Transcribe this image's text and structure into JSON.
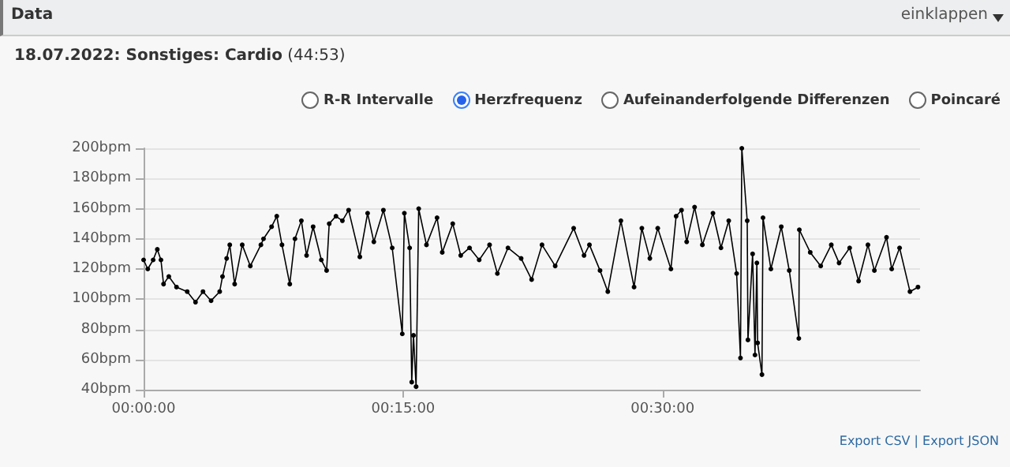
{
  "chart_data": {
    "type": "line",
    "title": "18.07.2022: Sonstiges: Cardio (44:53)",
    "annotations": [
      "Data",
      "einklappen",
      "R-R Intervalle",
      "Herzfrequenz",
      "Aufeinanderfolgende Differenzen",
      "Poincaré",
      "Export CSV | Export JSON"
    ],
    "xlim": [
      0,
      0.748
    ],
    "xticks": [
      {
        "value": 0,
        "label": "00:00:00"
      },
      {
        "value": 0.25,
        "label": "00:15:00"
      },
      {
        "value": 0.5,
        "label": "00:30:00"
      }
    ],
    "ylim": [
      40,
      200
    ],
    "yticks": [
      {
        "value": 40,
        "label": "40bpm"
      },
      {
        "value": 60,
        "label": "60bpm"
      },
      {
        "value": 80,
        "label": "80bpm"
      },
      {
        "value": 100,
        "label": "100bpm"
      },
      {
        "value": 120,
        "label": "120bpm"
      },
      {
        "value": 140,
        "label": "140bpm"
      },
      {
        "value": 160,
        "label": "160bpm"
      },
      {
        "value": 180,
        "label": "180bpm"
      },
      {
        "value": 200,
        "label": "200bpm"
      }
    ],
    "grid": "y",
    "marker": "circle",
    "line_style": "solid",
    "series": [
      {
        "color": "#000000",
        "x": [
          0,
          0.004,
          0.0092,
          0.0132,
          0.0167,
          0.0192,
          0.0243,
          0.0317,
          0.042,
          0.05,
          0.0572,
          0.065,
          0.0733,
          0.076,
          0.08,
          0.083,
          0.0877,
          0.095,
          0.1028,
          0.113,
          0.1155,
          0.1233,
          0.1283,
          0.1333,
          0.1408,
          0.1458,
          0.152,
          0.157,
          0.1633,
          0.1712,
          0.1763,
          0.1788,
          0.1853,
          0.1915,
          0.1975,
          0.2083,
          0.2158,
          0.2218,
          0.231,
          0.2395,
          0.2492,
          0.2512,
          0.2563,
          0.2583,
          0.26,
          0.2625,
          0.265,
          0.2725,
          0.2827,
          0.2877,
          0.2978,
          0.3055,
          0.314,
          0.3233,
          0.3333,
          0.3408,
          0.351,
          0.3637,
          0.3738,
          0.3838,
          0.3965,
          0.4143,
          0.4243,
          0.4295,
          0.4397,
          0.4472,
          0.4598,
          0.4725,
          0.48,
          0.4877,
          0.4953,
          0.508,
          0.513,
          0.5182,
          0.5232,
          0.5308,
          0.5383,
          0.5485,
          0.5562,
          0.5637,
          0.5713,
          0.575,
          0.5763,
          0.5815,
          0.5822,
          0.5867,
          0.589,
          0.5908,
          0.5915,
          0.5957,
          0.5967,
          0.6043,
          0.6143,
          0.622,
          0.6312,
          0.6317,
          0.6422,
          0.6523,
          0.6625,
          0.67,
          0.6802,
          0.6888,
          0.6978,
          0.704,
          0.7157,
          0.7207,
          0.7283,
          0.7383,
          0.746
        ],
        "values": [
          126,
          120,
          126,
          133,
          126,
          110,
          115,
          108,
          105,
          98,
          105,
          99,
          105,
          115,
          127,
          136,
          110,
          136,
          122,
          136,
          140,
          148,
          155,
          136,
          110,
          140,
          152,
          129,
          148,
          126,
          119,
          150,
          155,
          152,
          159,
          128,
          157,
          138,
          159,
          134,
          77,
          157,
          134,
          45,
          76,
          42,
          160,
          136,
          154,
          131,
          150,
          129,
          134,
          126,
          136,
          117,
          134,
          127,
          113,
          136,
          122,
          147,
          129,
          136,
          119,
          105,
          152,
          108,
          147,
          127,
          147,
          120,
          155,
          159,
          138,
          161,
          136,
          157,
          134,
          152,
          117,
          61,
          200,
          152,
          73,
          130,
          63,
          124,
          71,
          50,
          154,
          120,
          148,
          119,
          74,
          146,
          131,
          122,
          136,
          124,
          134,
          112,
          136,
          119,
          141,
          120,
          134,
          105,
          108
        ]
      }
    ]
  }
}
